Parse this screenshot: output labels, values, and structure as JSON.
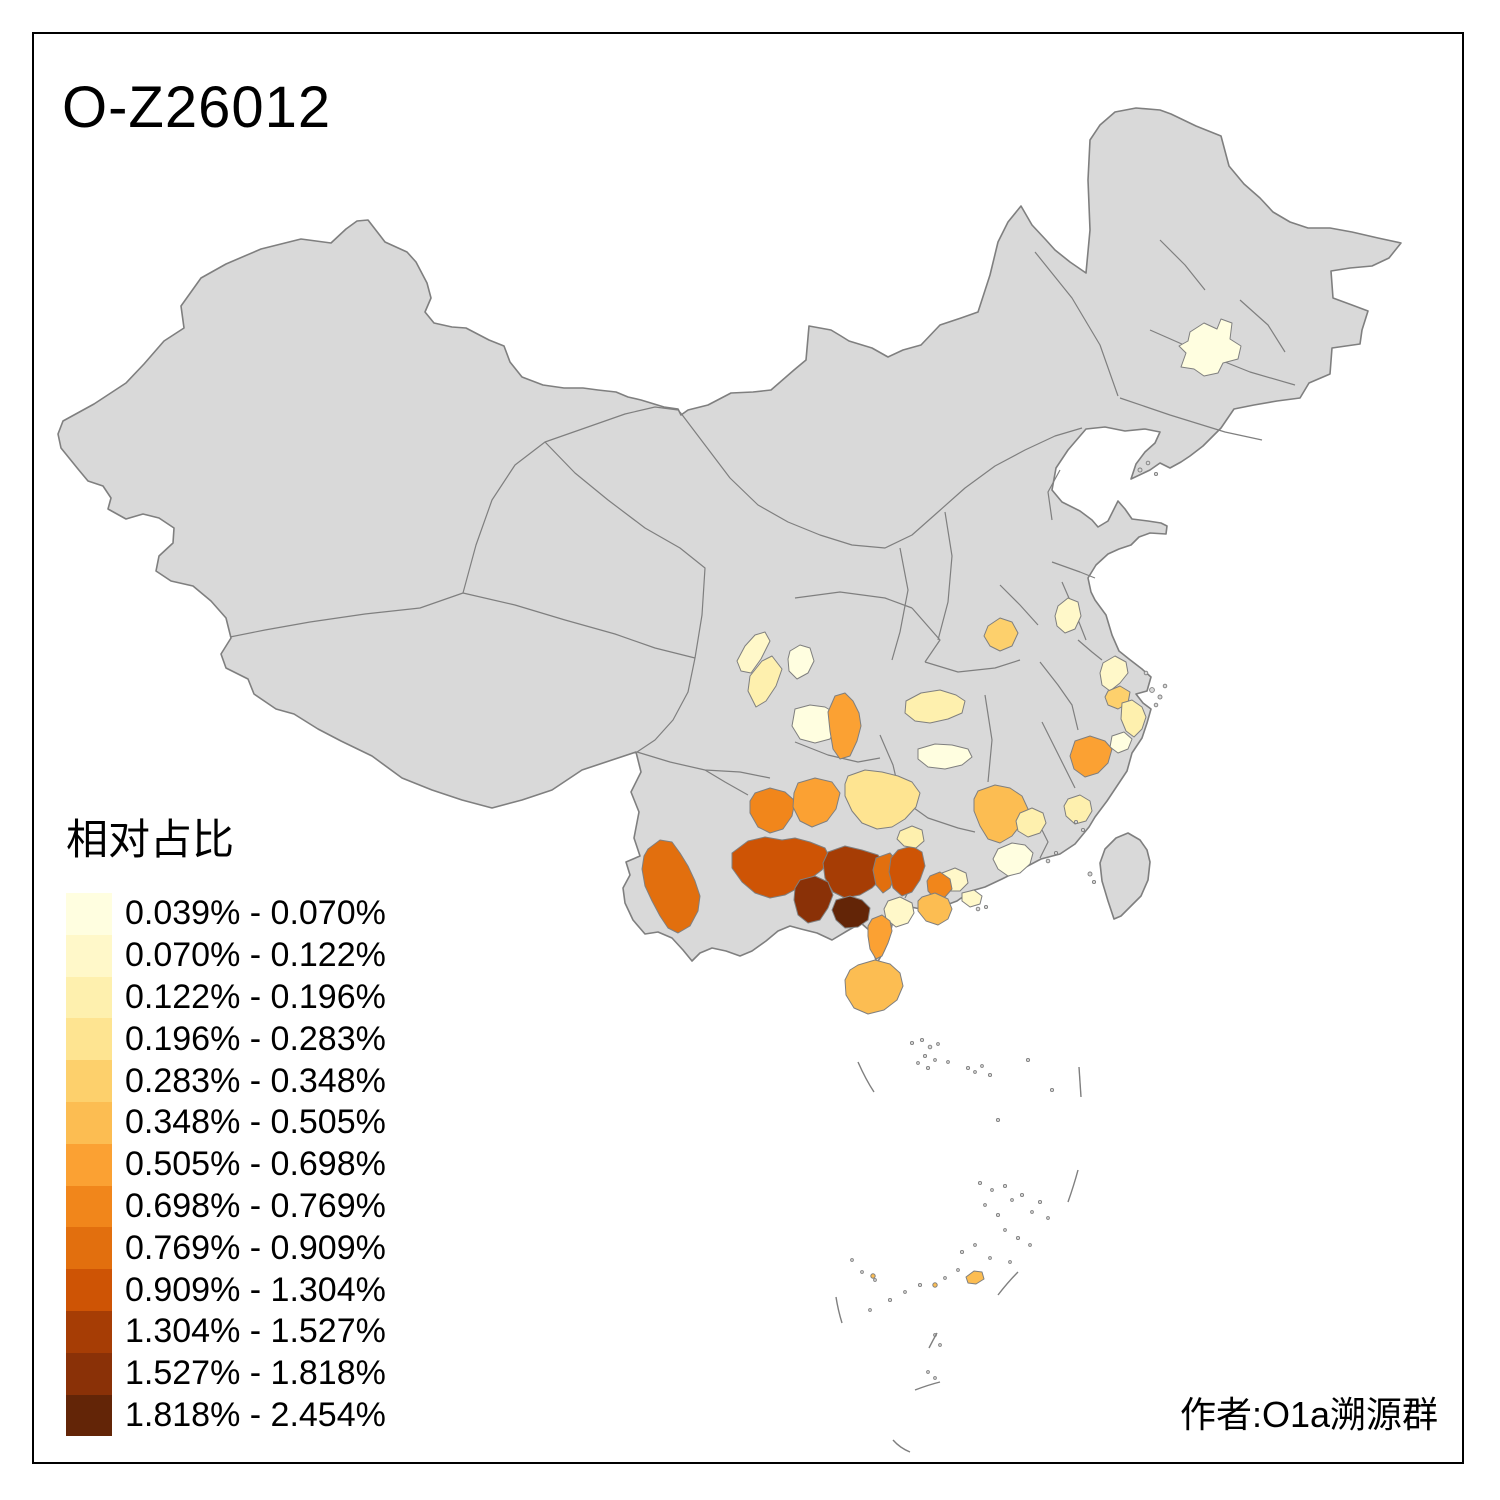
{
  "figure": {
    "title": "O-Z26012",
    "attribution": "作者:O1a溯源群"
  },
  "legend": {
    "title": "相对占比",
    "items": [
      {
        "label": "0.039% - 0.070%",
        "color": "#FFFEE0"
      },
      {
        "label": "0.070% - 0.122%",
        "color": "#FFF8C9"
      },
      {
        "label": "0.122% - 0.196%",
        "color": "#FEF0AE"
      },
      {
        "label": "0.196% - 0.283%",
        "color": "#FEE491"
      },
      {
        "label": "0.283% - 0.348%",
        "color": "#FDD06C"
      },
      {
        "label": "0.348% - 0.505%",
        "color": "#FCBD52"
      },
      {
        "label": "0.505% - 0.698%",
        "color": "#FBA133"
      },
      {
        "label": "0.698% - 0.769%",
        "color": "#F1861B"
      },
      {
        "label": "0.769% - 0.909%",
        "color": "#E26F0E"
      },
      {
        "label": "0.909% - 1.304%",
        "color": "#CE5405"
      },
      {
        "label": "1.304% - 1.527%",
        "color": "#A63D05"
      },
      {
        "label": "1.527% - 1.818%",
        "color": "#8A3107"
      },
      {
        "label": "1.818% - 2.454%",
        "color": "#632507"
      }
    ]
  },
  "map": {
    "colors": {
      "land": "#d9d9d9",
      "border": "#7f7f7f",
      "sea": "#ffffff",
      "frame": "#000000"
    }
  },
  "chart_data": {
    "type": "choropleth-map",
    "title": "O-Z26012",
    "legend_title": "相对占比",
    "unit": "percent relative frequency",
    "bins": [
      "0.039% - 0.070%",
      "0.070% - 0.122%",
      "0.122% - 0.196%",
      "0.196% - 0.283%",
      "0.283% - 0.348%",
      "0.348% - 0.505%",
      "0.505% - 0.698%",
      "0.698% - 0.769%",
      "0.769% - 0.909%",
      "0.909% - 1.304%",
      "1.304% - 1.527%",
      "1.527% - 1.818%",
      "1.818% - 2.454%"
    ],
    "regions": [
      {
        "id": "harbin-area",
        "bin": 1
      },
      {
        "id": "chengdu-plain-north",
        "bin": 2
      },
      {
        "id": "chengdu-plain-south",
        "bin": 3
      },
      {
        "id": "chengdu-city",
        "bin": 1
      },
      {
        "id": "leshan-meishan",
        "bin": 1
      },
      {
        "id": "zigong-neijiang",
        "bin": 7
      },
      {
        "id": "west-hunan-strip",
        "bin": 3
      },
      {
        "id": "north-hunan",
        "bin": 1
      },
      {
        "id": "southeast-hubei",
        "bin": 5
      },
      {
        "id": "central-anhui",
        "bin": 2
      },
      {
        "id": "hangzhou",
        "bin": 2
      },
      {
        "id": "shaoxing",
        "bin": 5
      },
      {
        "id": "ningbo-taizhou-coast",
        "bin": 3
      },
      {
        "id": "jinhua",
        "bin": 1
      },
      {
        "id": "south-zhejiang",
        "bin": 7
      },
      {
        "id": "north-guangdong",
        "bin": 6
      },
      {
        "id": "fuzhou-coast",
        "bin": 3
      },
      {
        "id": "meizhou",
        "bin": 3
      },
      {
        "id": "heyuan",
        "bin": 1
      },
      {
        "id": "foshan-guangzhou",
        "bin": 2
      },
      {
        "id": "zhaoqing-yunfu",
        "bin": 8
      },
      {
        "id": "jiangmen",
        "bin": 6
      },
      {
        "id": "zhuhai-coast",
        "bin": 2
      },
      {
        "id": "maoming-yangjiang",
        "bin": 2
      },
      {
        "id": "zhanjiang-leizhou",
        "bin": 7
      },
      {
        "id": "hainan",
        "bin": 6
      },
      {
        "id": "south-yunnan-puer",
        "bin": 9
      },
      {
        "id": "southeast-yunnan-wenshan",
        "bin": 10
      },
      {
        "id": "central-guangxi-nanning",
        "bin": 11
      },
      {
        "id": "southwest-guangxi-chongzuo",
        "bin": 12
      },
      {
        "id": "south-guangxi-coastal",
        "bin": 13
      },
      {
        "id": "east-guangxi-wuzhou",
        "bin": 10
      },
      {
        "id": "guigang-area",
        "bin": 9
      },
      {
        "id": "southwest-guizhou",
        "bin": 8
      },
      {
        "id": "south-guizhou",
        "bin": 7
      },
      {
        "id": "central-guizhou",
        "bin": 4
      },
      {
        "id": "hezhou-area",
        "bin": 3
      },
      {
        "id": "sansha-islands",
        "bin": 6
      },
      {
        "id": "sansha-islet-west",
        "bin": 6
      },
      {
        "id": "sansha-islet-mid",
        "bin": 6
      }
    ]
  }
}
